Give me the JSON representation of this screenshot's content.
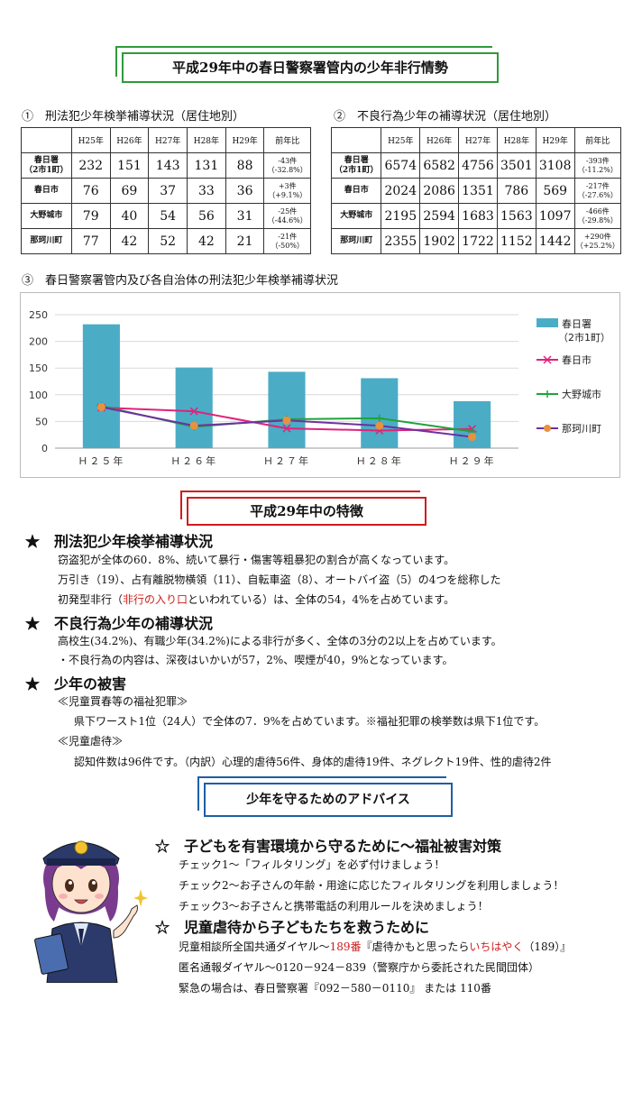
{
  "title": "平成29年中の春日警察署管内の少年非行情勢",
  "table1": {
    "heading": "①　刑法犯少年検挙補導状況（居住地別）",
    "columns": [
      "",
      "H25年",
      "H26年",
      "H27年",
      "H28年",
      "H29年",
      "前年比"
    ],
    "rows": [
      {
        "area": "春日署\n（2市1町）",
        "values": [
          "232",
          "151",
          "143",
          "131",
          "88"
        ],
        "cmp": "-43件\n（-32.8%）"
      },
      {
        "area": "春日市",
        "values": [
          "76",
          "69",
          "37",
          "33",
          "36"
        ],
        "cmp": "+3件\n（+9.1%）"
      },
      {
        "area": "大野城市",
        "values": [
          "79",
          "40",
          "54",
          "56",
          "31"
        ],
        "cmp": "-25件\n（-44.6%）"
      },
      {
        "area": "那珂川町",
        "values": [
          "77",
          "42",
          "52",
          "42",
          "21"
        ],
        "cmp": "-21件\n（-50%）"
      }
    ]
  },
  "table2": {
    "heading": "②　不良行為少年の補導状況（居住地別）",
    "columns": [
      "",
      "H25年",
      "H26年",
      "H27年",
      "H28年",
      "H29年",
      "前年比"
    ],
    "rows": [
      {
        "area": "春日署\n（2市1町）",
        "values": [
          "6574",
          "6582",
          "4756",
          "3501",
          "3108"
        ],
        "cmp": "-393件\n（-11.2%）"
      },
      {
        "area": "春日市",
        "values": [
          "2024",
          "2086",
          "1351",
          "786",
          "569"
        ],
        "cmp": "-217件\n（-27.6%）"
      },
      {
        "area": "大野城市",
        "values": [
          "2195",
          "2594",
          "1683",
          "1563",
          "1097"
        ],
        "cmp": "-466件\n（-29.8%）"
      },
      {
        "area": "那珂川町",
        "values": [
          "2355",
          "1902",
          "1722",
          "1152",
          "1442"
        ],
        "cmp": "+290件\n（+25.2%）"
      }
    ]
  },
  "chart_heading": "③　春日警察署管内及び各自治体の刑法犯少年検挙補導状況",
  "chart_data": {
    "type": "bar",
    "categories": [
      "Ｈ２５年",
      "Ｈ２６年",
      "Ｈ２７年",
      "Ｈ２８年",
      "Ｈ２９年"
    ],
    "ylim": [
      0,
      250
    ],
    "yticks": [
      0,
      50,
      100,
      150,
      200,
      250
    ],
    "series": [
      {
        "name": "春日署\n（2市1町）",
        "kind": "bar",
        "color": "#4bacc6",
        "values": [
          232,
          151,
          143,
          131,
          88
        ]
      },
      {
        "name": "春日市",
        "kind": "line",
        "color": "#e0227a",
        "marker": "x",
        "values": [
          76,
          69,
          37,
          33,
          36
        ]
      },
      {
        "name": "大野城市",
        "kind": "line",
        "color": "#1fa33a",
        "marker": "plus",
        "values": [
          79,
          40,
          54,
          56,
          31
        ]
      },
      {
        "name": "那珂川町",
        "kind": "line",
        "color": "#7030a0",
        "marker": "dot",
        "markerColor": "#e8913f",
        "values": [
          77,
          42,
          52,
          42,
          21
        ]
      }
    ]
  },
  "features_title": "平成29年中の特徴",
  "features": [
    {
      "head": "★　刑法犯少年検挙補導状況",
      "lines": [
        "窃盗犯が全体の60．8%、続いて暴行・傷害等粗暴犯の割合が高くなっています。",
        "万引き（19）、占有離脱物横領（11）、自転車盗（8）、オートバイ盗（5）の4つを総称した"
      ],
      "red_line": {
        "pre": "初発型非行（",
        "red": "非行の入り口",
        "post": "といわれている）は、全体の54，4%を占めています。"
      }
    },
    {
      "head": "★　不良行為少年の補導状況",
      "lines": [
        "高校生(34.2%)、有職少年(34.2%)による非行が多く、全体の3分の2以上を占めています。",
        "・不良行為の内容は、深夜はいかいが57，2%、喫煙が40，9%となっています。"
      ]
    },
    {
      "head": "★　少年の被害",
      "sub1": "≪児童買春等の福祉犯罪≫",
      "sub1_text": "県下ワースト1位（24人）で全体の7．9%を占めています。※福祉犯罪の検挙数は県下1位です。",
      "sub2": "≪児童虐待≫",
      "sub2_text": "認知件数は96件です。（内訳）心理的虐待56件、身体的虐待19件、ネグレクト19件、性的虐待2件"
    }
  ],
  "advice_title": "少年を守るためのアドバイス",
  "advice1": {
    "head": "☆　子どもを有害環境から守るために～福祉被害対策",
    "lines": [
      "チェック1～「フィルタリング」を必ず付けましょう！",
      "チェック2～お子さんの年齢・用途に応じたフィルタリングを利用しましょう！",
      "チェック3～お子さんと携帯電話の利用ルールを決めましょう！"
    ]
  },
  "advice2": {
    "head": "☆　児童虐待から子どもたちを救うために",
    "line1": {
      "pre": "児童相談所全国共通ダイヤル～",
      "red1": "189番",
      "mid": "『虐待かもと思ったら",
      "red2": "いちはやく",
      "post": "（189）』"
    },
    "line2": "匿名通報ダイヤル～0120－924－839（警察庁から委託された民間団体）",
    "line3": "緊急の場合は、春日警察署『092－580－0110』 または 110番"
  }
}
